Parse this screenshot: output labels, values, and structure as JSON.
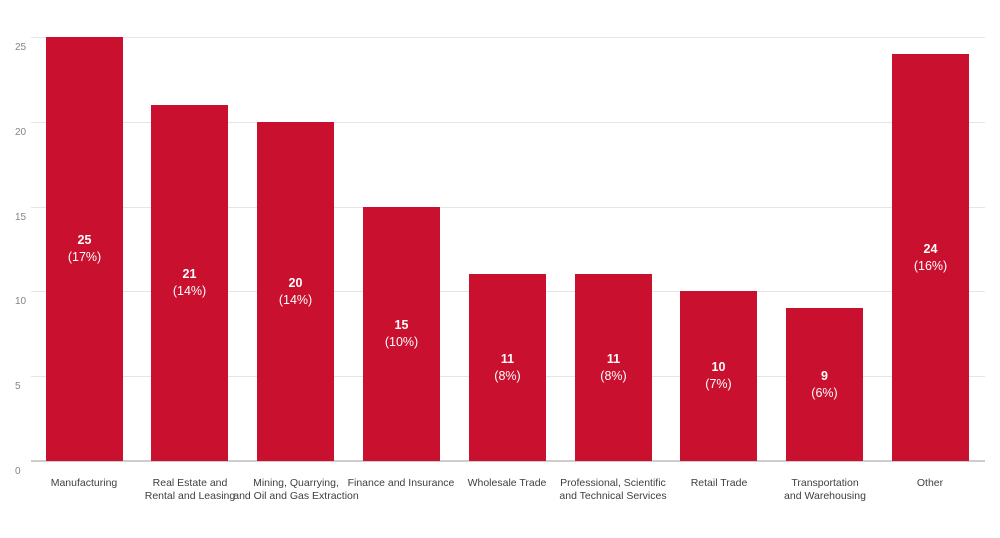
{
  "chart_data": {
    "type": "bar",
    "title": "",
    "xlabel": "",
    "ylabel": "",
    "ylim": [
      0,
      25.6
    ],
    "yticks": [
      0,
      5,
      10,
      15,
      20,
      25
    ],
    "grid": true,
    "legend_position": "none",
    "categories": [
      [
        "Manufacturing"
      ],
      [
        "Real Estate and",
        "Rental and Leasing"
      ],
      [
        "Mining, Quarrying,",
        "and Oil and Gas Extraction"
      ],
      [
        "Finance and Insurance"
      ],
      [
        "Wholesale Trade"
      ],
      [
        "Professional, Scientific",
        "and Technical Services"
      ],
      [
        "Retail Trade"
      ],
      [
        "Transportation",
        "and Warehousing"
      ],
      [
        "Other"
      ]
    ],
    "values": [
      25,
      21,
      20,
      15,
      11,
      11,
      10,
      9,
      24
    ],
    "value_labels": [
      "25",
      "21",
      "20",
      "15",
      "11",
      "11",
      "10",
      "9",
      "24"
    ],
    "percent_labels": [
      "(17%)",
      "(14%)",
      "(14%)",
      "(10%)",
      "(8%)",
      "(8%)",
      "(7%)",
      "(6%)",
      "(16%)"
    ],
    "colors": {
      "bar": "#c9102e",
      "bar_label_text": "#ffffff",
      "grid_line": "#e5e5e5",
      "axis_baseline": "#cdcdcd",
      "y_tick_label": "#848484",
      "category_label": "#3f3f3f",
      "background": "#ffffff"
    }
  }
}
